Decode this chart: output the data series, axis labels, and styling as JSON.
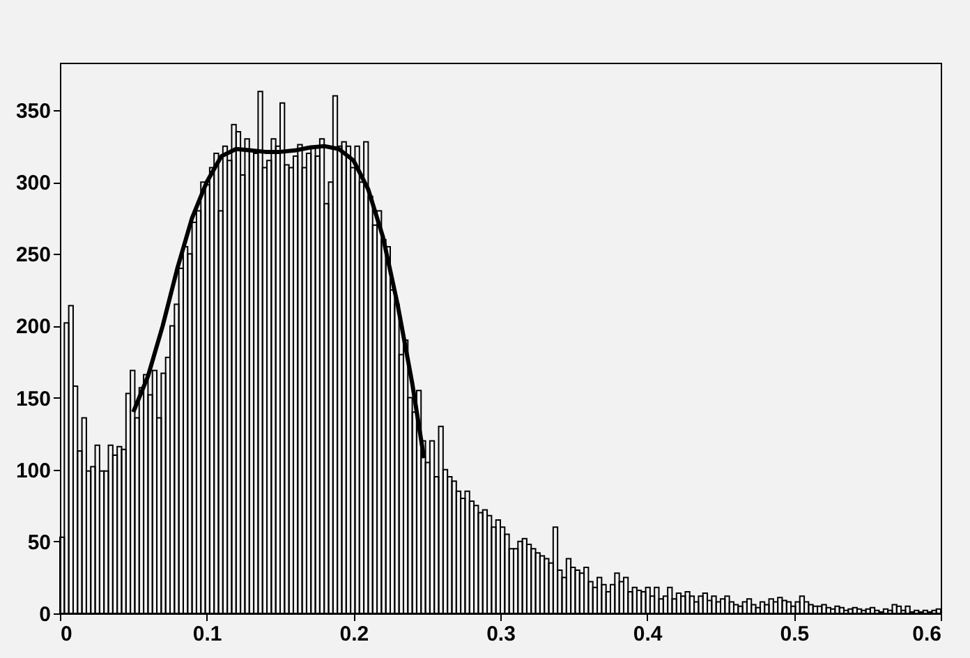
{
  "chart_data": {
    "type": "histogram",
    "bins": [
      0,
      0.003,
      0.006,
      0.009,
      0.012,
      0.015,
      0.018,
      0.021,
      0.024,
      0.027,
      0.03,
      0.033,
      0.036,
      0.039,
      0.042,
      0.045,
      0.048,
      0.051,
      0.054,
      0.057,
      0.06,
      0.063,
      0.066,
      0.069,
      0.072,
      0.075,
      0.078,
      0.081,
      0.084,
      0.087,
      0.09,
      0.093,
      0.096,
      0.099,
      0.102,
      0.105,
      0.108,
      0.111,
      0.114,
      0.117,
      0.12,
      0.123,
      0.126,
      0.129,
      0.132,
      0.135,
      0.138,
      0.141,
      0.144,
      0.147,
      0.15,
      0.153,
      0.156,
      0.159,
      0.162,
      0.165,
      0.168,
      0.171,
      0.174,
      0.177,
      0.18,
      0.183,
      0.186,
      0.189,
      0.192,
      0.195,
      0.198,
      0.201,
      0.204,
      0.207,
      0.21,
      0.213,
      0.216,
      0.219,
      0.222,
      0.225,
      0.228,
      0.231,
      0.234,
      0.237,
      0.24,
      0.243,
      0.246,
      0.249,
      0.252,
      0.255,
      0.258,
      0.261,
      0.264,
      0.267,
      0.27,
      0.273,
      0.276,
      0.279,
      0.282,
      0.285,
      0.288,
      0.291,
      0.294,
      0.297,
      0.3,
      0.303,
      0.306,
      0.309,
      0.312,
      0.315,
      0.318,
      0.321,
      0.324,
      0.327,
      0.33,
      0.333,
      0.336,
      0.339,
      0.342,
      0.345,
      0.348,
      0.351,
      0.354,
      0.357,
      0.36,
      0.363,
      0.366,
      0.369,
      0.372,
      0.375,
      0.378,
      0.381,
      0.384,
      0.387,
      0.39,
      0.393,
      0.396,
      0.399,
      0.402,
      0.405,
      0.408,
      0.411,
      0.414,
      0.417,
      0.42,
      0.423,
      0.426,
      0.429,
      0.432,
      0.435,
      0.438,
      0.441,
      0.444,
      0.447,
      0.45,
      0.453,
      0.456,
      0.459,
      0.462,
      0.465,
      0.468,
      0.471,
      0.474,
      0.477,
      0.48,
      0.483,
      0.486,
      0.489,
      0.492,
      0.495,
      0.498,
      0.501,
      0.504,
      0.507,
      0.51,
      0.513,
      0.516,
      0.519,
      0.522,
      0.525,
      0.528,
      0.531,
      0.534,
      0.537,
      0.54,
      0.543,
      0.546,
      0.549,
      0.552,
      0.555,
      0.558,
      0.561,
      0.564,
      0.567,
      0.57,
      0.573,
      0.576,
      0.579,
      0.582,
      0.585,
      0.588,
      0.591,
      0.594,
      0.597,
      0.6
    ],
    "values": [
      53,
      202,
      214,
      158,
      113,
      136,
      99,
      102,
      117,
      99,
      99,
      117,
      110,
      116,
      114,
      153,
      169,
      136,
      157,
      166,
      152,
      169,
      136,
      167,
      178,
      200,
      215,
      240,
      255,
      250,
      272,
      280,
      300,
      298,
      310,
      320,
      280,
      325,
      315,
      340,
      335,
      305,
      330,
      322,
      320,
      363,
      310,
      315,
      330,
      325,
      355,
      312,
      310,
      318,
      326,
      310,
      320,
      325,
      318,
      330,
      285,
      300,
      360,
      325,
      328,
      325,
      310,
      325,
      300,
      328,
      290,
      270,
      280,
      260,
      255,
      225,
      215,
      180,
      190,
      150,
      140,
      155,
      120,
      105,
      120,
      95,
      130,
      100,
      95,
      92,
      85,
      80,
      85,
      78,
      75,
      70,
      72,
      68,
      60,
      65,
      60,
      55,
      45,
      45,
      50,
      52,
      48,
      45,
      42,
      40,
      38,
      35,
      60,
      30,
      25,
      38,
      32,
      30,
      28,
      32,
      22,
      18,
      25,
      20,
      15,
      20,
      28,
      22,
      25,
      15,
      18,
      16,
      15,
      18,
      12,
      18,
      10,
      12,
      18,
      10,
      14,
      12,
      15,
      12,
      8,
      12,
      14,
      9,
      12,
      8,
      10,
      12,
      8,
      6,
      5,
      8,
      10,
      6,
      4,
      8,
      6,
      10,
      8,
      11,
      9,
      8,
      5,
      8,
      12,
      8,
      6,
      5,
      5,
      6,
      4,
      3,
      5,
      4,
      2,
      3,
      4,
      3,
      2,
      3,
      4,
      2,
      1,
      3,
      2,
      6,
      5,
      2,
      5,
      1,
      2,
      1,
      2,
      1,
      2,
      3
    ],
    "color": "#000000",
    "series": [
      {
        "type": "line",
        "color": "#000000",
        "x": [
          0.05,
          0.06,
          0.07,
          0.08,
          0.09,
          0.1,
          0.11,
          0.12,
          0.13,
          0.14,
          0.15,
          0.16,
          0.17,
          0.18,
          0.19,
          0.2,
          0.21,
          0.22,
          0.23,
          0.24,
          0.248
        ],
        "values": [
          140,
          165,
          200,
          240,
          275,
          300,
          318,
          323,
          322,
          321,
          321,
          322,
          324,
          325,
          323,
          315,
          295,
          262,
          215,
          160,
          108
        ]
      }
    ],
    "xlim": [
      0,
      0.6
    ],
    "ylim": [
      0,
      383
    ],
    "xticks": [
      0,
      0.1,
      0.2,
      0.3,
      0.4,
      0.5,
      0.6
    ],
    "yticks": [
      0,
      50,
      100,
      150,
      200,
      250,
      300,
      350
    ],
    "grid": false,
    "legend": false
  }
}
